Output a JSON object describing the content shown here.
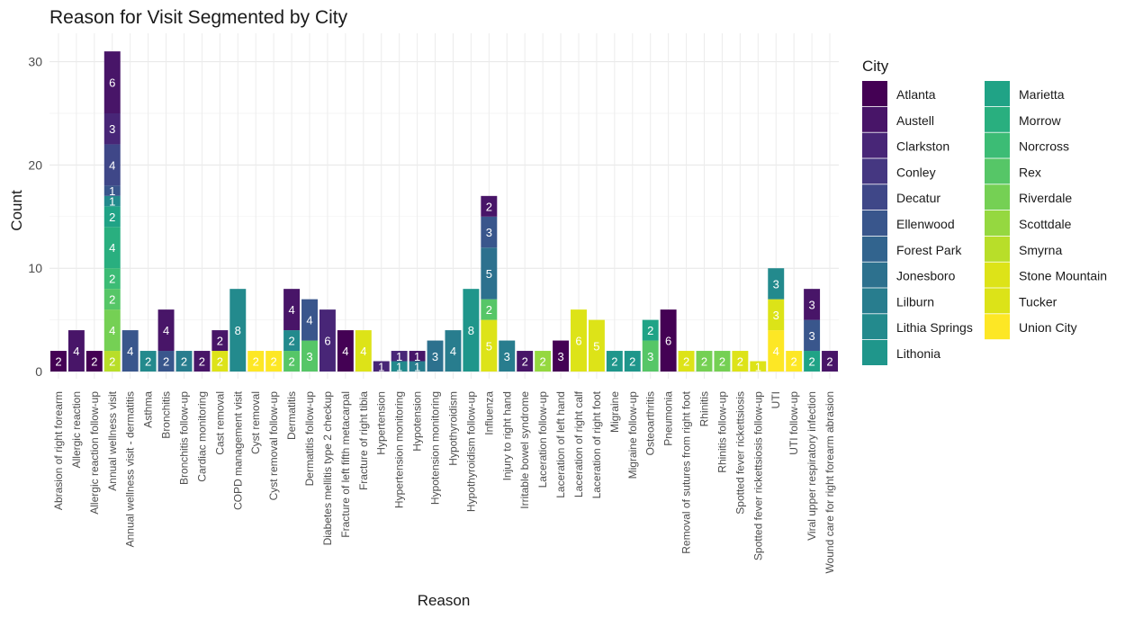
{
  "chart_data": {
    "type": "bar",
    "stacked": true,
    "title": "Reason for Visit Segmented by City",
    "xlabel": "Reason",
    "ylabel": "Count",
    "ylim": [
      0,
      32
    ],
    "yticks": [
      0,
      10,
      20,
      30
    ],
    "grid": true,
    "legend_title": "City",
    "legend_position": "right",
    "categories": [
      "Abrasion of right forearm",
      "Allergic reaction",
      "Allergic reaction follow-up",
      "Annual wellness visit",
      "Annual wellness visit - dermatitis",
      "Asthma",
      "Bronchitis",
      "Bronchitis follow-up",
      "Cardiac monitoring",
      "Cast removal",
      "COPD management visit",
      "Cyst removal",
      "Cyst removal follow-up",
      "Dermatitis",
      "Dermatitis follow-up",
      "Diabetes mellitis type 2 checkup",
      "Fracture of left fifth metacarpal",
      "Fracture of right tibia",
      "Hypertension",
      "Hypertension monitoring",
      "Hypotension",
      "Hypotension monitoring",
      "Hypothyroidism",
      "Hypothyroidism follow-up",
      "Influenza",
      "Injury to right hand",
      "Irritable bowel syndrome",
      "Laceration follow-up",
      "Laceration of left hand",
      "Laceration of right calf",
      "Laceration of right foot",
      "Migraine",
      "Migraine follow-up",
      "Osteoarthritis",
      "Pneumonia",
      "Removal of sutures from right foot",
      "Rhinitis",
      "Rhinitis follow-up",
      "Spotted fever rickettsiosis",
      "Spotted fever rickettsiosis follow-up",
      "UTI",
      "UTI follow-up",
      "Viral upper respiratory infection",
      "Wound care for right forearm abrasion"
    ],
    "cities": [
      "Atlanta",
      "Austell",
      "Clarkston",
      "Conley",
      "Decatur",
      "Ellenwood",
      "Forest Park",
      "Jonesboro",
      "Lilburn",
      "Lithia Springs",
      "Lithonia",
      "Marietta",
      "Morrow",
      "Norcross",
      "Rex",
      "Riverdale",
      "Scottdale",
      "Smyrna",
      "Stone Mountain",
      "Tucker",
      "Union City"
    ],
    "colors": {
      "Atlanta": "#440154",
      "Austell": "#481568",
      "Clarkston": "#482677",
      "Conley": "#453781",
      "Decatur": "#3f4788",
      "Ellenwood": "#39568c",
      "Forest Park": "#32648e",
      "Jonesboro": "#2d718e",
      "Lilburn": "#287d8e",
      "Lithia Springs": "#238a8d",
      "Lithonia": "#1f968b",
      "Marietta": "#20a386",
      "Morrow": "#29af7f",
      "Norcross": "#3cbc75",
      "Rex": "#56c667",
      "Riverdale": "#75d054",
      "Scottdale": "#95d840",
      "Smyrna": "#b8de29",
      "Stone Mountain": "#dde318",
      "Tucker": "#dce318",
      "Union City": "#fde725"
    },
    "segments": [
      [
        {
          "city": "Atlanta",
          "value": 2
        }
      ],
      [
        {
          "city": "Austell",
          "value": 4
        }
      ],
      [
        {
          "city": "Atlanta",
          "value": 2
        }
      ],
      [
        {
          "city": "Smyrna",
          "value": 2
        },
        {
          "city": "Riverdale",
          "value": 4
        },
        {
          "city": "Rex",
          "value": 2
        },
        {
          "city": "Norcross",
          "value": 2
        },
        {
          "city": "Morrow",
          "value": 4
        },
        {
          "city": "Marietta",
          "value": 2
        },
        {
          "city": "Lithia Springs",
          "value": 1
        },
        {
          "city": "Ellenwood",
          "value": 1
        },
        {
          "city": "Decatur",
          "value": 4
        },
        {
          "city": "Clarkston",
          "value": 3
        },
        {
          "city": "Austell",
          "value": 6
        }
      ],
      [
        {
          "city": "Ellenwood",
          "value": 4
        }
      ],
      [
        {
          "city": "Lithia Springs",
          "value": 2
        }
      ],
      [
        {
          "city": "Ellenwood",
          "value": 2
        },
        {
          "city": "Austell",
          "value": 4
        }
      ],
      [
        {
          "city": "Lilburn",
          "value": 2
        }
      ],
      [
        {
          "city": "Austell",
          "value": 2
        }
      ],
      [
        {
          "city": "Stone Mountain",
          "value": 2
        },
        {
          "city": "Austell",
          "value": 2
        }
      ],
      [
        {
          "city": "Lithia Springs",
          "value": 8
        }
      ],
      [
        {
          "city": "Union City",
          "value": 2
        }
      ],
      [
        {
          "city": "Union City",
          "value": 2
        }
      ],
      [
        {
          "city": "Rex",
          "value": 2
        },
        {
          "city": "Lithia Springs",
          "value": 2
        },
        {
          "city": "Austell",
          "value": 4
        }
      ],
      [
        {
          "city": "Rex",
          "value": 3
        },
        {
          "city": "Ellenwood",
          "value": 4
        }
      ],
      [
        {
          "city": "Clarkston",
          "value": 6
        }
      ],
      [
        {
          "city": "Atlanta",
          "value": 4
        }
      ],
      [
        {
          "city": "Stone Mountain",
          "value": 4
        }
      ],
      [
        {
          "city": "Clarkston",
          "value": 1
        }
      ],
      [
        {
          "city": "Lithia Springs",
          "value": 1
        },
        {
          "city": "Clarkston",
          "value": 1
        }
      ],
      [
        {
          "city": "Lilburn",
          "value": 1
        },
        {
          "city": "Austell",
          "value": 1
        }
      ],
      [
        {
          "city": "Jonesboro",
          "value": 3
        }
      ],
      [
        {
          "city": "Lilburn",
          "value": 4
        }
      ],
      [
        {
          "city": "Lithonia",
          "value": 8
        }
      ],
      [
        {
          "city": "Stone Mountain",
          "value": 5
        },
        {
          "city": "Rex",
          "value": 2
        },
        {
          "city": "Jonesboro",
          "value": 5
        },
        {
          "city": "Ellenwood",
          "value": 3
        },
        {
          "city": "Austell",
          "value": 2
        }
      ],
      [
        {
          "city": "Lilburn",
          "value": 3
        }
      ],
      [
        {
          "city": "Austell",
          "value": 2
        }
      ],
      [
        {
          "city": "Scottdale",
          "value": 2
        }
      ],
      [
        {
          "city": "Atlanta",
          "value": 3
        }
      ],
      [
        {
          "city": "Stone Mountain",
          "value": 6
        }
      ],
      [
        {
          "city": "Stone Mountain",
          "value": 5
        }
      ],
      [
        {
          "city": "Lithonia",
          "value": 2
        }
      ],
      [
        {
          "city": "Lithonia",
          "value": 2
        }
      ],
      [
        {
          "city": "Rex",
          "value": 3
        },
        {
          "city": "Marietta",
          "value": 2
        }
      ],
      [
        {
          "city": "Atlanta",
          "value": 6
        }
      ],
      [
        {
          "city": "Stone Mountain",
          "value": 2
        }
      ],
      [
        {
          "city": "Riverdale",
          "value": 2
        }
      ],
      [
        {
          "city": "Riverdale",
          "value": 2
        }
      ],
      [
        {
          "city": "Stone Mountain",
          "value": 2
        }
      ],
      [
        {
          "city": "Stone Mountain",
          "value": 1
        }
      ],
      [
        {
          "city": "Union City",
          "value": 4
        },
        {
          "city": "Tucker",
          "value": 3
        },
        {
          "city": "Lithia Springs",
          "value": 3
        }
      ],
      [
        {
          "city": "Union City",
          "value": 2
        }
      ],
      [
        {
          "city": "Marietta",
          "value": 2
        },
        {
          "city": "Ellenwood",
          "value": 3
        },
        {
          "city": "Austell",
          "value": 3
        }
      ],
      [
        {
          "city": "Austell",
          "value": 2
        }
      ]
    ]
  }
}
